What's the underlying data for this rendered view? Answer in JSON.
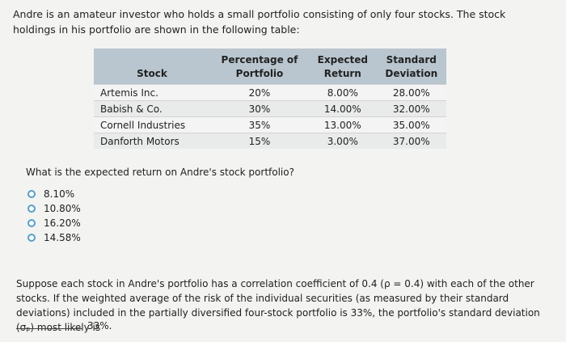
{
  "intro": "Andre is an amateur investor who holds a small portfolio consisting of only four stocks. The stock holdings in his portfolio are shown in the following table:",
  "table": {
    "headers": {
      "stock": "Stock",
      "pct": [
        "Percentage of",
        "Portfolio"
      ],
      "ret": [
        "Expected",
        "Return"
      ],
      "sd": [
        "Standard",
        "Deviation"
      ]
    },
    "rows": [
      {
        "stock": "Artemis Inc.",
        "pct": "20%",
        "ret": "8.00%",
        "sd": "28.00%"
      },
      {
        "stock": "Babish & Co.",
        "pct": "30%",
        "ret": "14.00%",
        "sd": "32.00%"
      },
      {
        "stock": "Cornell Industries",
        "pct": "35%",
        "ret": "13.00%",
        "sd": "35.00%"
      },
      {
        "stock": "Danforth Motors",
        "pct": "15%",
        "ret": "3.00%",
        "sd": "37.00%"
      }
    ]
  },
  "question": "What is the expected return on Andre's stock portfolio?",
  "options": [
    "8.10%",
    "10.80%",
    "16.20%",
    "14.58%"
  ],
  "paragraph": "Suppose each stock in Andre's portfolio has a correlation coefficient of 0.4 (ρ = 0.4) with each of the other stocks. If the weighted average of the risk of the individual securities (as measured by their standard deviations) included in the partially diversified four-stock portfolio is 33%, the portfolio's standard deviation (σₚ) most likely is",
  "answer_suffix": "33%."
}
